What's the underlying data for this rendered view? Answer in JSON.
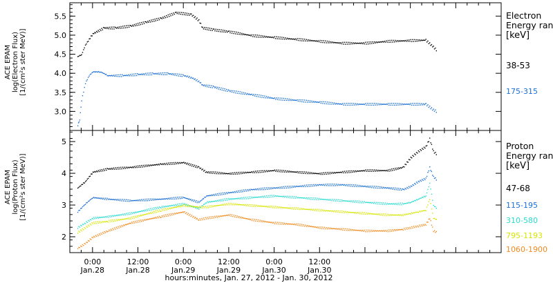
{
  "chart_data": [
    {
      "type": "scatter",
      "panel": "electron",
      "ylabel_lines": [
        "ACE EPAM",
        "log(Electron Flux)",
        "[1/(cm²s ster MeV)]"
      ],
      "yticks": [
        "3.0",
        "3.5",
        "4.0",
        "4.5",
        "5.0",
        "5.5"
      ],
      "ylim": [
        2.5,
        5.85
      ],
      "legend_title_lines": [
        "Electron",
        "Energy ran"
      ],
      "legend_unit": "[keV]",
      "series": [
        {
          "name": "38-53",
          "color": "#000000",
          "x": [
            -4,
            -3,
            -2,
            0,
            3,
            6,
            10,
            14,
            18,
            22,
            26,
            28,
            29,
            32,
            36,
            42,
            48,
            54,
            60,
            66,
            72,
            78,
            84,
            88,
            90,
            91
          ],
          "y": [
            4.45,
            4.5,
            4.75,
            5.05,
            5.2,
            5.2,
            5.25,
            5.35,
            5.45,
            5.6,
            5.55,
            5.4,
            5.2,
            5.15,
            5.1,
            5.0,
            4.95,
            4.9,
            4.85,
            4.8,
            4.8,
            4.85,
            4.87,
            4.88,
            4.7,
            4.6
          ]
        },
        {
          "name": "175-315",
          "color": "#1a6fd6",
          "x": [
            -4,
            -3.5,
            -3,
            -2,
            -1,
            0,
            2,
            4,
            8,
            12,
            16,
            20,
            24,
            26,
            28,
            29,
            32,
            36,
            42,
            48,
            54,
            60,
            66,
            72,
            78,
            84,
            88,
            90,
            91
          ],
          "y": [
            2.65,
            2.8,
            3.3,
            3.75,
            3.95,
            4.05,
            4.05,
            3.95,
            3.95,
            3.98,
            4.0,
            4.0,
            3.95,
            3.9,
            3.8,
            3.7,
            3.65,
            3.55,
            3.45,
            3.35,
            3.3,
            3.25,
            3.2,
            3.2,
            3.2,
            3.2,
            3.2,
            3.05,
            3.0
          ]
        }
      ]
    },
    {
      "type": "scatter",
      "panel": "proton",
      "ylabel_lines": [
        "ACE EPAM",
        "log(Proton Flux)",
        "[1/(cm²s ster MeV)]"
      ],
      "yticks": [
        "2",
        "3",
        "4",
        "5"
      ],
      "ylim": [
        1.5,
        5.35
      ],
      "legend_title_lines": [
        "Proton",
        "Energy ran"
      ],
      "legend_unit": "[keV]",
      "series": [
        {
          "name": "47-68",
          "color": "#000000",
          "x": [
            -4,
            -2,
            0,
            4,
            10,
            18,
            24,
            28,
            30,
            36,
            42,
            48,
            54,
            60,
            66,
            72,
            78,
            82,
            84,
            86,
            88,
            89,
            90,
            91
          ],
          "y": [
            3.55,
            3.75,
            4.05,
            4.15,
            4.2,
            4.3,
            4.35,
            4.2,
            4.05,
            4.0,
            4.05,
            4.1,
            4.05,
            4.0,
            4.05,
            4.1,
            4.1,
            4.2,
            4.5,
            4.7,
            4.85,
            5.1,
            4.7,
            4.6
          ]
        },
        {
          "name": "115-195",
          "color": "#1a6fd6",
          "x": [
            -4,
            -2,
            0,
            4,
            10,
            18,
            24,
            28,
            30,
            36,
            42,
            48,
            54,
            60,
            66,
            72,
            78,
            82,
            84,
            86,
            88,
            89,
            90,
            91
          ],
          "y": [
            2.8,
            3.05,
            3.25,
            3.2,
            3.15,
            3.2,
            3.25,
            3.1,
            3.3,
            3.4,
            3.5,
            3.55,
            3.6,
            3.65,
            3.65,
            3.6,
            3.55,
            3.5,
            3.6,
            3.75,
            3.85,
            4.2,
            3.9,
            3.8
          ]
        },
        {
          "name": "310-580",
          "color": "#29dcd0",
          "x": [
            -4,
            -2,
            0,
            4,
            10,
            18,
            24,
            28,
            30,
            36,
            42,
            48,
            54,
            60,
            66,
            72,
            78,
            82,
            84,
            86,
            88,
            89,
            90,
            91
          ],
          "y": [
            2.3,
            2.45,
            2.6,
            2.65,
            2.75,
            2.95,
            3.05,
            2.9,
            3.1,
            3.2,
            3.25,
            3.3,
            3.25,
            3.2,
            3.15,
            3.1,
            3.05,
            3.05,
            3.1,
            3.2,
            3.3,
            3.7,
            3.0,
            2.9
          ]
        },
        {
          "name": "795-1193",
          "color": "#d6e600",
          "x": [
            -4,
            -2,
            0,
            4,
            10,
            18,
            24,
            28,
            30,
            36,
            42,
            48,
            54,
            60,
            66,
            72,
            78,
            82,
            84,
            86,
            88,
            89,
            90,
            91
          ],
          "y": [
            2.15,
            2.3,
            2.45,
            2.5,
            2.6,
            2.85,
            3.0,
            2.95,
            2.95,
            3.05,
            3.0,
            2.95,
            2.9,
            2.85,
            2.8,
            2.75,
            2.7,
            2.7,
            2.75,
            2.8,
            2.85,
            3.2,
            2.6,
            2.55
          ]
        },
        {
          "name": "1060-1900",
          "color": "#f28a1e",
          "x": [
            -4,
            -2,
            0,
            4,
            10,
            18,
            24,
            28,
            30,
            36,
            42,
            48,
            54,
            60,
            66,
            72,
            78,
            82,
            84,
            86,
            88,
            89,
            90,
            91
          ],
          "y": [
            1.65,
            1.8,
            2.0,
            2.2,
            2.45,
            2.65,
            2.8,
            2.55,
            2.6,
            2.7,
            2.55,
            2.45,
            2.4,
            2.3,
            2.25,
            2.2,
            2.2,
            2.25,
            2.3,
            2.35,
            2.4,
            2.6,
            2.2,
            2.15
          ]
        }
      ]
    }
  ],
  "xaxis": {
    "xlim": [
      -6,
      108
    ],
    "tick_labels": [
      {
        "x": 0,
        "time": "0:00",
        "date": "Jan.28"
      },
      {
        "x": 12,
        "time": "12:00",
        "date": "Jan.28"
      },
      {
        "x": 24,
        "time": "0:00",
        "date": "Jan.29"
      },
      {
        "x": 36,
        "time": "12:00",
        "date": "Jan.29"
      },
      {
        "x": 48,
        "time": "0:00",
        "date": "Jan.30"
      },
      {
        "x": 60,
        "time": "12:00",
        "date": "Jan.30"
      }
    ],
    "caption": "hours:minutes, Jan. 27, 2012 - Jan. 30, 2012"
  }
}
